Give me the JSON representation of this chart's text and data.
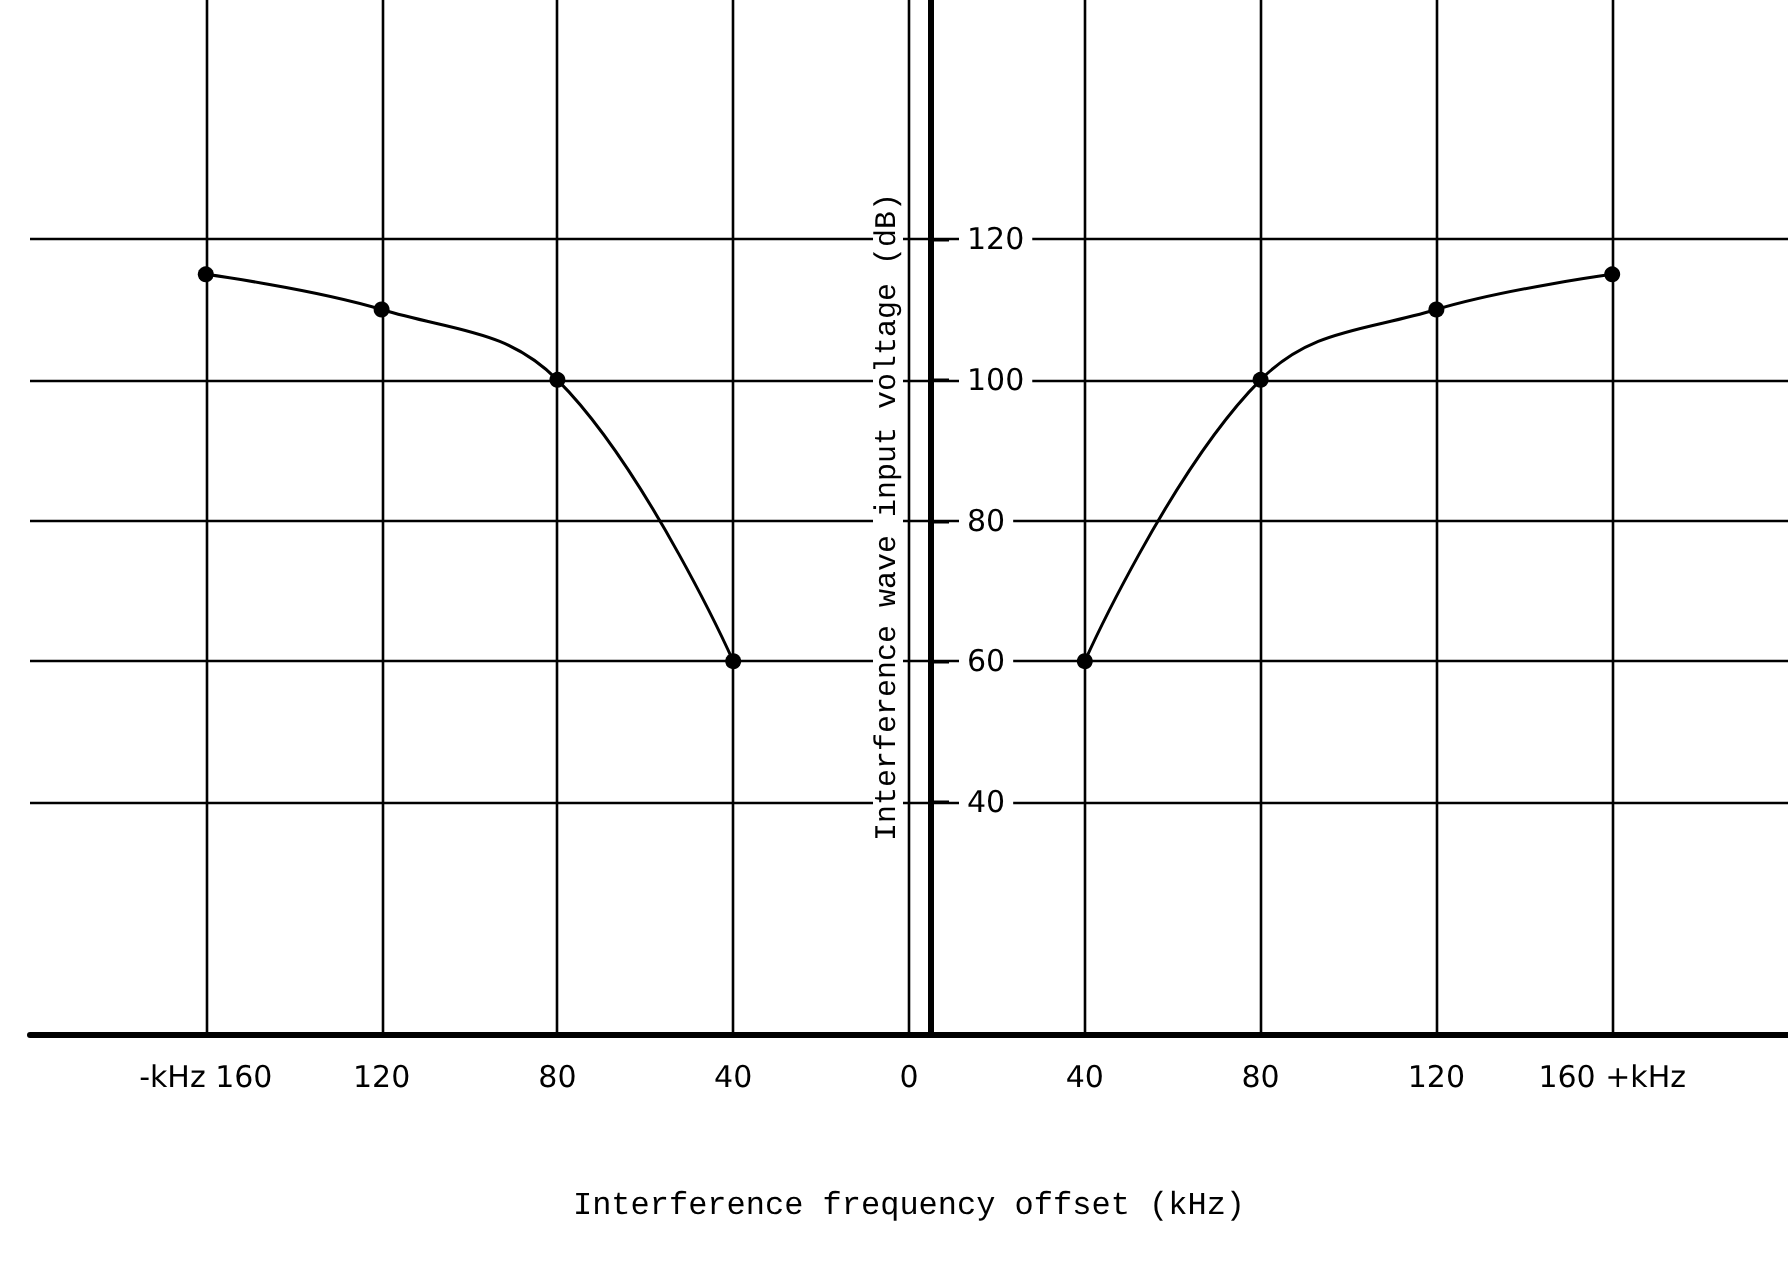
{
  "chart_data": {
    "type": "line",
    "xlabel": "Interference frequency offset (kHz)",
    "ylabel": "Interference wave input voltage (dB)",
    "series": [
      {
        "color": "#000000",
        "x": [
          -160,
          -120,
          -80,
          -40
        ],
        "values": [
          115,
          110,
          100,
          60
        ]
      },
      {
        "color": "#000000",
        "x": [
          40,
          80,
          120,
          160
        ],
        "values": [
          60,
          100,
          110,
          115
        ]
      }
    ],
    "xlim": [
      -200,
      200
    ],
    "xticks": [
      {
        "value": -160,
        "label": "-kHz 160"
      },
      {
        "value": -120,
        "label": "120"
      },
      {
        "value": -80,
        "label": "80"
      },
      {
        "value": -40,
        "label": "40"
      },
      0,
      40,
      80,
      120,
      {
        "value": 160,
        "label": "160 +kHz"
      }
    ],
    "ylim": [
      7,
      154
    ],
    "yticks": [
      40,
      60,
      80,
      100,
      120
    ],
    "grid": true,
    "marker": "circle",
    "line_style": "solid"
  }
}
